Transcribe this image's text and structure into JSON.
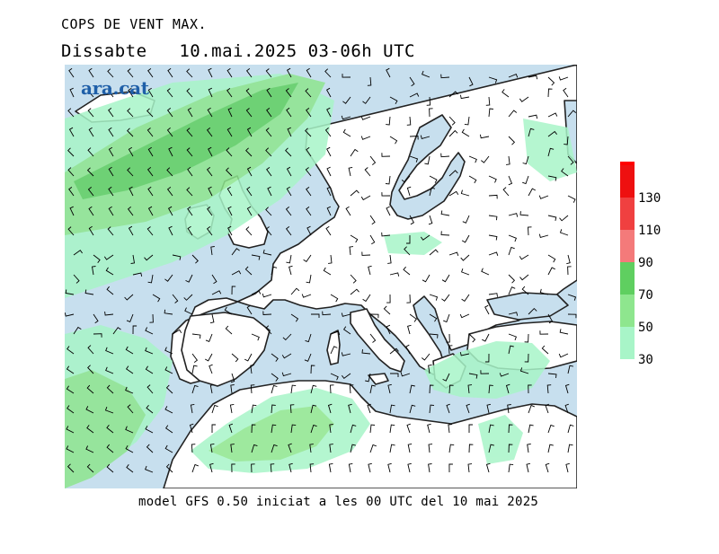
{
  "header": {
    "title": "COPS DE VENT MAX.",
    "subtitle": "Dissabte   10.mai.2025 03-06h UTC"
  },
  "footer": {
    "caption": "model GFS 0.50 iniciat a les 00 UTC del 10 mai 2025"
  },
  "branding": {
    "logo_text": "ara.cat"
  },
  "legend": {
    "bands": [
      {
        "label": "30",
        "color": "#a8f5c8"
      },
      {
        "label": "50",
        "color": "#8ee68e"
      },
      {
        "label": "70",
        "color": "#5fcf60"
      },
      {
        "label": "90",
        "color": "#f47a7a"
      },
      {
        "label": "110",
        "color": "#f04040"
      },
      {
        "label": "130",
        "color": "#ee1010"
      }
    ],
    "top_color": "#ff0000"
  },
  "colors": {
    "sea": "#c7dfee",
    "land": "#ffffff",
    "gust_30": "#a8f5c8",
    "gust_50": "#8ee68e",
    "gust_70": "#5fcf60",
    "coastline": "#222222",
    "barbs": "#000000"
  },
  "map": {
    "region": "Europe and Mediterranean",
    "variable": "maximum wind gusts",
    "overlay": "wind barbs"
  }
}
